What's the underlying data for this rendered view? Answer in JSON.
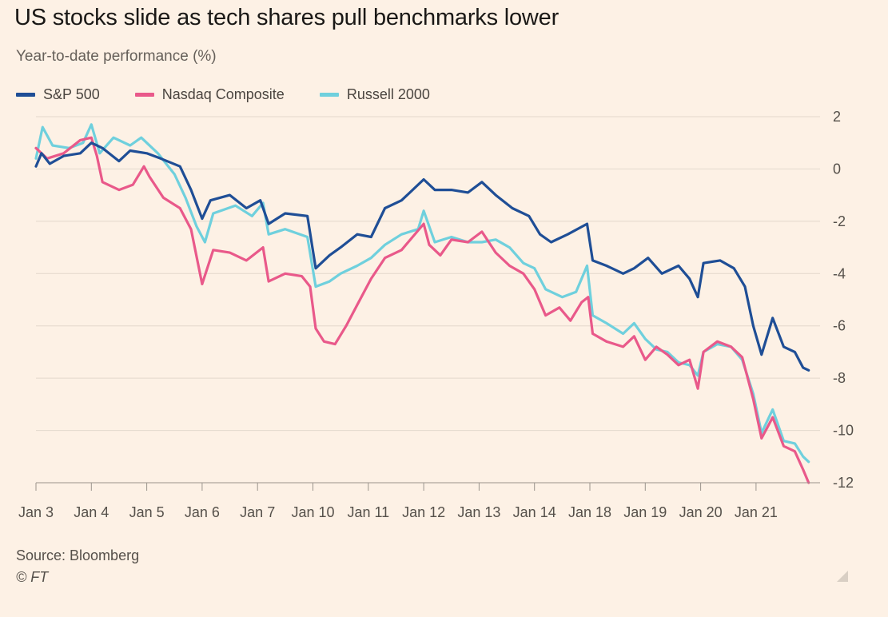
{
  "title": "US stocks slide as tech shares pull benchmarks lower",
  "subtitle": "Year-to-date performance (%)",
  "source": "Source: Bloomberg",
  "credit": "© FT",
  "colors": {
    "background": "#fdf1e5",
    "sp500": "#1f4e96",
    "nasdaq": "#e9598a",
    "russell": "#6fd0dd",
    "grid": "#e3d8cc",
    "axis": "#9b948c"
  },
  "chart_data": {
    "type": "line",
    "title": "US stocks slide as tech shares pull benchmarks lower",
    "ylabel": "Year-to-date performance (%)",
    "xlabel": "",
    "ylim": [
      -12,
      2
    ],
    "yticks": [
      2,
      0,
      -2,
      -4,
      -6,
      -8,
      -10,
      -12
    ],
    "ytick_labels": [
      "2",
      "0",
      "-2",
      "-4",
      "-6",
      "-8",
      "-10",
      "-12"
    ],
    "categories": [
      "Jan 3",
      "Jan 4",
      "Jan 5",
      "Jan 6",
      "Jan 7",
      "Jan 10",
      "Jan 11",
      "Jan 12",
      "Jan 13",
      "Jan 14",
      "Jan 18",
      "Jan 19",
      "Jan 20",
      "Jan 21"
    ],
    "x_end": 13.95,
    "legend_position": "top-left",
    "grid": true,
    "series": [
      {
        "name": "S&P 500",
        "key": "sp500",
        "points": [
          [
            0,
            0.1
          ],
          [
            0.1,
            0.6
          ],
          [
            0.25,
            0.2
          ],
          [
            0.5,
            0.5
          ],
          [
            0.8,
            0.6
          ],
          [
            1,
            1.0
          ],
          [
            1.2,
            0.8
          ],
          [
            1.5,
            0.3
          ],
          [
            1.7,
            0.7
          ],
          [
            2,
            0.6
          ],
          [
            2.25,
            0.4
          ],
          [
            2.6,
            0.1
          ],
          [
            2.8,
            -0.8
          ],
          [
            3,
            -1.9
          ],
          [
            3.15,
            -1.2
          ],
          [
            3.5,
            -1.0
          ],
          [
            3.8,
            -1.5
          ],
          [
            4.05,
            -1.2
          ],
          [
            4.2,
            -2.1
          ],
          [
            4.5,
            -1.7
          ],
          [
            4.9,
            -1.8
          ],
          [
            5.05,
            -3.8
          ],
          [
            5.3,
            -3.3
          ],
          [
            5.5,
            -3.0
          ],
          [
            5.8,
            -2.5
          ],
          [
            6.05,
            -2.6
          ],
          [
            6.3,
            -1.5
          ],
          [
            6.6,
            -1.2
          ],
          [
            7,
            -0.4
          ],
          [
            7.2,
            -0.8
          ],
          [
            7.5,
            -0.8
          ],
          [
            7.8,
            -0.9
          ],
          [
            8.05,
            -0.5
          ],
          [
            8.3,
            -1.0
          ],
          [
            8.6,
            -1.5
          ],
          [
            8.9,
            -1.8
          ],
          [
            9.1,
            -2.5
          ],
          [
            9.3,
            -2.8
          ],
          [
            9.6,
            -2.5
          ],
          [
            9.95,
            -2.1
          ],
          [
            10.05,
            -3.5
          ],
          [
            10.3,
            -3.7
          ],
          [
            10.6,
            -4.0
          ],
          [
            10.8,
            -3.8
          ],
          [
            11.05,
            -3.4
          ],
          [
            11.3,
            -4.0
          ],
          [
            11.6,
            -3.7
          ],
          [
            11.8,
            -4.2
          ],
          [
            11.95,
            -4.9
          ],
          [
            12.05,
            -3.6
          ],
          [
            12.35,
            -3.5
          ],
          [
            12.6,
            -3.8
          ],
          [
            12.8,
            -4.5
          ],
          [
            12.95,
            -6.0
          ],
          [
            13.1,
            -7.1
          ],
          [
            13.3,
            -5.7
          ],
          [
            13.5,
            -6.8
          ],
          [
            13.7,
            -7.0
          ],
          [
            13.85,
            -7.6
          ],
          [
            13.95,
            -7.7
          ]
        ]
      },
      {
        "name": "Nasdaq Composite",
        "key": "nasdaq",
        "points": [
          [
            0,
            0.8
          ],
          [
            0.2,
            0.4
          ],
          [
            0.5,
            0.6
          ],
          [
            0.8,
            1.1
          ],
          [
            1,
            1.2
          ],
          [
            1.1,
            0.5
          ],
          [
            1.2,
            -0.5
          ],
          [
            1.5,
            -0.8
          ],
          [
            1.75,
            -0.6
          ],
          [
            1.95,
            0.1
          ],
          [
            2.05,
            -0.3
          ],
          [
            2.3,
            -1.1
          ],
          [
            2.6,
            -1.5
          ],
          [
            2.8,
            -2.3
          ],
          [
            3,
            -4.4
          ],
          [
            3.2,
            -3.1
          ],
          [
            3.5,
            -3.2
          ],
          [
            3.8,
            -3.5
          ],
          [
            4.1,
            -3.0
          ],
          [
            4.2,
            -4.3
          ],
          [
            4.5,
            -4.0
          ],
          [
            4.8,
            -4.1
          ],
          [
            4.95,
            -4.5
          ],
          [
            5.05,
            -6.1
          ],
          [
            5.2,
            -6.6
          ],
          [
            5.4,
            -6.7
          ],
          [
            5.6,
            -6.0
          ],
          [
            5.8,
            -5.2
          ],
          [
            6.05,
            -4.2
          ],
          [
            6.3,
            -3.4
          ],
          [
            6.6,
            -3.1
          ],
          [
            7,
            -2.1
          ],
          [
            7.1,
            -2.9
          ],
          [
            7.3,
            -3.3
          ],
          [
            7.5,
            -2.7
          ],
          [
            7.8,
            -2.8
          ],
          [
            8.05,
            -2.4
          ],
          [
            8.3,
            -3.2
          ],
          [
            8.55,
            -3.7
          ],
          [
            8.8,
            -4.0
          ],
          [
            9,
            -4.6
          ],
          [
            9.2,
            -5.6
          ],
          [
            9.45,
            -5.3
          ],
          [
            9.65,
            -5.8
          ],
          [
            9.85,
            -5.1
          ],
          [
            9.97,
            -4.9
          ],
          [
            10.05,
            -6.3
          ],
          [
            10.3,
            -6.6
          ],
          [
            10.6,
            -6.8
          ],
          [
            10.8,
            -6.4
          ],
          [
            11,
            -7.3
          ],
          [
            11.2,
            -6.8
          ],
          [
            11.4,
            -7.1
          ],
          [
            11.6,
            -7.5
          ],
          [
            11.8,
            -7.3
          ],
          [
            11.95,
            -8.4
          ],
          [
            12.05,
            -7.0
          ],
          [
            12.3,
            -6.6
          ],
          [
            12.55,
            -6.8
          ],
          [
            12.75,
            -7.2
          ],
          [
            12.95,
            -8.8
          ],
          [
            13.1,
            -10.3
          ],
          [
            13.3,
            -9.5
          ],
          [
            13.5,
            -10.6
          ],
          [
            13.7,
            -10.8
          ],
          [
            13.85,
            -11.5
          ],
          [
            13.95,
            -12.0
          ]
        ]
      },
      {
        "name": "Russell 2000",
        "key": "russell",
        "points": [
          [
            0,
            0.4
          ],
          [
            0.12,
            1.6
          ],
          [
            0.3,
            0.9
          ],
          [
            0.6,
            0.8
          ],
          [
            0.85,
            1.0
          ],
          [
            1,
            1.7
          ],
          [
            1.15,
            0.6
          ],
          [
            1.4,
            1.2
          ],
          [
            1.7,
            0.9
          ],
          [
            1.9,
            1.2
          ],
          [
            2.2,
            0.6
          ],
          [
            2.5,
            -0.2
          ],
          [
            2.7,
            -1.1
          ],
          [
            2.9,
            -2.2
          ],
          [
            3.05,
            -2.8
          ],
          [
            3.2,
            -1.7
          ],
          [
            3.6,
            -1.4
          ],
          [
            3.9,
            -1.8
          ],
          [
            4.1,
            -1.3
          ],
          [
            4.2,
            -2.5
          ],
          [
            4.5,
            -2.3
          ],
          [
            4.9,
            -2.6
          ],
          [
            5.05,
            -4.5
          ],
          [
            5.3,
            -4.3
          ],
          [
            5.5,
            -4.0
          ],
          [
            5.8,
            -3.7
          ],
          [
            6.05,
            -3.4
          ],
          [
            6.3,
            -2.9
          ],
          [
            6.6,
            -2.5
          ],
          [
            6.9,
            -2.3
          ],
          [
            7,
            -1.6
          ],
          [
            7.2,
            -2.8
          ],
          [
            7.5,
            -2.6
          ],
          [
            7.8,
            -2.8
          ],
          [
            8.05,
            -2.8
          ],
          [
            8.3,
            -2.7
          ],
          [
            8.55,
            -3.0
          ],
          [
            8.8,
            -3.6
          ],
          [
            9,
            -3.8
          ],
          [
            9.2,
            -4.6
          ],
          [
            9.5,
            -4.9
          ],
          [
            9.75,
            -4.7
          ],
          [
            9.95,
            -3.7
          ],
          [
            10.05,
            -5.6
          ],
          [
            10.3,
            -5.9
          ],
          [
            10.6,
            -6.3
          ],
          [
            10.8,
            -5.9
          ],
          [
            11,
            -6.5
          ],
          [
            11.2,
            -6.9
          ],
          [
            11.4,
            -7.0
          ],
          [
            11.6,
            -7.4
          ],
          [
            11.8,
            -7.5
          ],
          [
            11.95,
            -7.9
          ],
          [
            12.05,
            -7.0
          ],
          [
            12.3,
            -6.7
          ],
          [
            12.55,
            -6.8
          ],
          [
            12.75,
            -7.3
          ],
          [
            12.95,
            -8.6
          ],
          [
            13.1,
            -10.1
          ],
          [
            13.3,
            -9.2
          ],
          [
            13.5,
            -10.4
          ],
          [
            13.7,
            -10.5
          ],
          [
            13.85,
            -11.0
          ],
          [
            13.95,
            -11.2
          ]
        ]
      }
    ]
  }
}
